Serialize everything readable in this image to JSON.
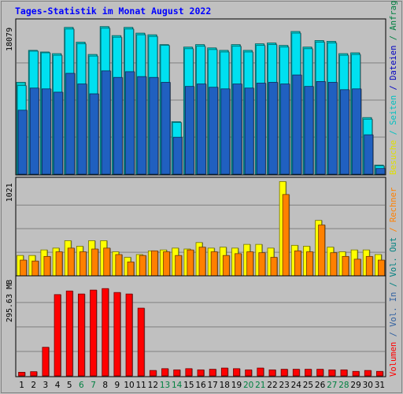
{
  "chart_data": {
    "title": "Tages-Statistik im Monat August 2022",
    "type": "bar",
    "categories": [
      "1",
      "2",
      "3",
      "4",
      "5",
      "6",
      "7",
      "8",
      "9",
      "10",
      "11",
      "12",
      "13",
      "14",
      "15",
      "16",
      "17",
      "18",
      "19",
      "20",
      "21",
      "22",
      "23",
      "24",
      "25",
      "26",
      "27",
      "28",
      "29",
      "30",
      "31"
    ],
    "weekend_days": [
      "6",
      "7",
      "13",
      "14",
      "20",
      "21",
      "27",
      "28"
    ],
    "panels": [
      {
        "name": "requests-panel",
        "ylabel": "18079",
        "ylim": [
          0,
          18079
        ],
        "series": [
          {
            "name": "Anfragen",
            "color": "#00c8c8",
            "values": [
              11200,
              15100,
              14900,
              14700,
              17900,
              16100,
              14600,
              18000,
              16900,
              17900,
              17200,
              17000,
              15800,
              6400,
              15500,
              15800,
              15400,
              15100,
              15800,
              15100,
              15900,
              16000,
              15700,
              17400,
              15500,
              16300,
              16200,
              14700,
              14800,
              6900,
              1100
            ]
          },
          {
            "name": "Dateien",
            "color": "#00e0f0",
            "values": [
              10800,
              15000,
              14800,
              14500,
              17700,
              15900,
              14400,
              17800,
              16700,
              17700,
              17000,
              16800,
              15700,
              6300,
              15300,
              15600,
              15200,
              14900,
              15600,
              14900,
              15700,
              15800,
              15500,
              17200,
              15300,
              16100,
              16000,
              14500,
              14600,
              6700,
              1000
            ]
          },
          {
            "name": "Seiten",
            "color": "#2060c0",
            "values": [
              7800,
              10500,
              10400,
              10000,
              12300,
              11000,
              9800,
              12600,
              11800,
              12500,
              11900,
              11800,
              11200,
              4500,
              10700,
              11000,
              10600,
              10400,
              11000,
              10500,
              11100,
              11200,
              11000,
              12100,
              10700,
              11300,
              11200,
              10300,
              10400,
              4800,
              700
            ]
          }
        ]
      },
      {
        "name": "visits-panel",
        "ylabel": "1021",
        "ylim": [
          0,
          1021
        ],
        "series": [
          {
            "name": "Besuche",
            "color": "#ffff00",
            "values": [
              220,
              220,
              280,
              300,
              380,
              320,
              380,
              380,
              260,
              200,
              230,
              270,
              280,
              300,
              290,
              360,
              300,
              310,
              300,
              340,
              340,
              300,
              1020,
              330,
              320,
              600,
              310,
              260,
              280,
              280,
              230
            ]
          },
          {
            "name": "Rechner",
            "color": "#ff8000",
            "values": [
              170,
              160,
              210,
              260,
              300,
              260,
              290,
              300,
              230,
              150,
              220,
              270,
              260,
              220,
              280,
              310,
              260,
              220,
              240,
              260,
              250,
              200,
              880,
              270,
              260,
              550,
              250,
              210,
              180,
              210,
              170
            ]
          }
        ]
      },
      {
        "name": "volume-panel",
        "ylabel": "295.63 MB",
        "ylim": [
          0,
          325
        ],
        "series": [
          {
            "name": "Volumen",
            "color": "#ff0000",
            "values": [
              12,
              14,
              95,
              270,
              282,
              272,
              285,
              290,
              277,
              272,
              225,
              18,
              24,
              20,
              24,
              20,
              22,
              26,
              24,
              20,
              26,
              20,
              22,
              22,
              22,
              22,
              20,
              20,
              15,
              18,
              15
            ]
          }
        ]
      }
    ],
    "right_legends": [
      {
        "name": "right-legend-top",
        "items": [
          {
            "text": "Anfragen",
            "color": "#008040"
          },
          {
            "text": " / ",
            "color": "#008040"
          },
          {
            "text": "Dateien",
            "color": "#0000c0"
          },
          {
            "text": " / ",
            "color": "#0000c0"
          },
          {
            "text": "Seiten",
            "color": "#00c0c0"
          },
          {
            "text": " / ",
            "color": "#00c0c0"
          },
          {
            "text": "Besuche",
            "color": "#e0e000"
          }
        ]
      },
      {
        "name": "right-legend-bottom",
        "items": [
          {
            "text": "Rechner",
            "color": "#ff8000"
          },
          {
            "text": " / ",
            "color": "#ff8000"
          },
          {
            "text": "Vol. Out",
            "color": "#008080"
          },
          {
            "text": " / ",
            "color": "#008080"
          },
          {
            "text": "Vol. In",
            "color": "#3060a0"
          },
          {
            "text": " / ",
            "color": "#3060a0"
          },
          {
            "text": "Volumen",
            "color": "#ff0000"
          }
        ]
      }
    ],
    "colors": {
      "background": "#c0c0c0",
      "title": "#0000ff",
      "weekday_label": "#000000",
      "weekend_label": "#008040"
    }
  }
}
